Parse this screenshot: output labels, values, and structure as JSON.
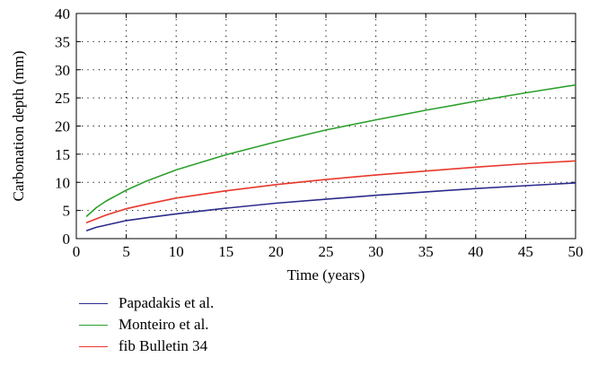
{
  "chart_data": {
    "type": "line",
    "xlabel": "Time (years)",
    "ylabel": "Carbonation depth (mm)",
    "xlim": [
      0,
      50
    ],
    "ylim": [
      0,
      40
    ],
    "x_ticks": [
      0,
      5,
      10,
      15,
      20,
      25,
      30,
      35,
      40,
      45,
      50
    ],
    "y_ticks": [
      0,
      5,
      10,
      15,
      20,
      25,
      30,
      35,
      40
    ],
    "grid": "dotted",
    "legend_position": "bottom",
    "x": [
      1,
      2,
      3,
      5,
      7,
      10,
      15,
      20,
      25,
      30,
      35,
      40,
      45,
      50
    ],
    "series": [
      {
        "name": "Papadakis et al.",
        "color": "#2b2b8c",
        "values": [
          1.4,
          2.0,
          2.4,
          3.2,
          3.7,
          4.4,
          5.4,
          6.3,
          7.0,
          7.7,
          8.3,
          8.9,
          9.4,
          9.9
        ]
      },
      {
        "name": "Monteiro et al.",
        "color": "#2ca02c",
        "values": [
          3.9,
          5.5,
          6.7,
          8.6,
          10.2,
          12.2,
          14.9,
          17.2,
          19.3,
          21.1,
          22.8,
          24.4,
          25.9,
          27.3
        ]
      },
      {
        "name": "fib Bulletin 34",
        "color": "#e8372c",
        "values": [
          2.8,
          3.5,
          4.2,
          5.3,
          6.1,
          7.2,
          8.5,
          9.6,
          10.5,
          11.3,
          12.0,
          12.7,
          13.3,
          13.8
        ]
      }
    ]
  }
}
